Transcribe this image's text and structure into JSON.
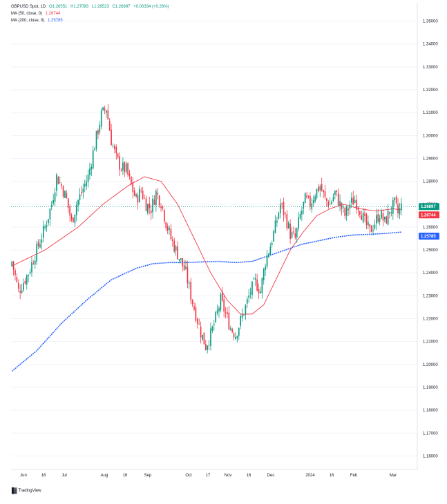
{
  "legend": {
    "symbol_line": {
      "symbol": "GBPUSD Spot, 1D",
      "open": "O1.26551",
      "high": "H1.27093",
      "low": "L1.26523",
      "close": "C1.26897",
      "change": "+0.00334 (+0.26%)"
    },
    "ma50": {
      "label": "MA (50, close, 0)",
      "value": "1.26744",
      "color": "#f23645"
    },
    "ma200": {
      "label": "MA (200, close, 0)",
      "value": "1.25785",
      "color": "#2962ff"
    }
  },
  "footer": {
    "brand": "TradingView"
  },
  "colors": {
    "up": "#089981",
    "down": "#f23645",
    "ma50": "#f23645",
    "ma200": "#2962ff",
    "price_line": "#089981",
    "grid": "#f0f3fa",
    "axis_text": "#131722"
  },
  "chart_data": {
    "type": "candlestick",
    "title": "GBPUSD Spot, 1D",
    "x_ticks": [
      "Jun",
      "16",
      "Jul",
      "Aug",
      "16",
      "Sep",
      "Oct",
      "17",
      "Nov",
      "16",
      "Dec",
      "2024",
      "16",
      "Feb",
      "Mar"
    ],
    "y_ticks": [
      "1.35000",
      "1.34000",
      "1.33000",
      "1.32000",
      "1.31000",
      "1.30000",
      "1.29000",
      "1.28000",
      "1.27000",
      "1.26000",
      "1.25000",
      "1.24000",
      "1.23000",
      "1.22000",
      "1.21000",
      "1.20000",
      "1.19000",
      "1.18000",
      "1.17000",
      "1.16000"
    ],
    "ylim": [
      1.155,
      1.355
    ],
    "price_labels": [
      {
        "name": "last-price",
        "value": "1.26897",
        "level": 1.26897,
        "color": "#089981"
      },
      {
        "name": "ma50-value",
        "value": "1.26744",
        "level": 1.26744,
        "color": "#f23645"
      },
      {
        "name": "ma200-value",
        "value": "1.25785",
        "level": 1.25785,
        "color": "#2962ff"
      }
    ],
    "close_path": [
      [
        0,
        1.245
      ],
      [
        4,
        1.232
      ],
      [
        10,
        1.24
      ],
      [
        16,
        1.252
      ],
      [
        20,
        1.26
      ],
      [
        24,
        1.27
      ],
      [
        27,
        1.282
      ],
      [
        30,
        1.278
      ],
      [
        33,
        1.272
      ],
      [
        36,
        1.262
      ],
      [
        39,
        1.27
      ],
      [
        42,
        1.275
      ],
      [
        46,
        1.282
      ],
      [
        50,
        1.296
      ],
      [
        54,
        1.309
      ],
      [
        57,
        1.312
      ],
      [
        60,
        1.298
      ],
      [
        63,
        1.29
      ],
      [
        66,
        1.286
      ],
      [
        69,
        1.285
      ],
      [
        72,
        1.278
      ],
      [
        75,
        1.272
      ],
      [
        78,
        1.276
      ],
      [
        81,
        1.27
      ],
      [
        84,
        1.268
      ],
      [
        87,
        1.275
      ],
      [
        90,
        1.271
      ],
      [
        93,
        1.262
      ],
      [
        96,
        1.255
      ],
      [
        99,
        1.25
      ],
      [
        102,
        1.245
      ],
      [
        105,
        1.24
      ],
      [
        108,
        1.23
      ],
      [
        111,
        1.222
      ],
      [
        114,
        1.214
      ],
      [
        117,
        1.208
      ],
      [
        120,
        1.213
      ],
      [
        123,
        1.22
      ],
      [
        126,
        1.228
      ],
      [
        129,
        1.222
      ],
      [
        132,
        1.216
      ],
      [
        135,
        1.213
      ],
      [
        138,
        1.219
      ],
      [
        141,
        1.225
      ],
      [
        144,
        1.232
      ],
      [
        147,
        1.236
      ],
      [
        150,
        1.232
      ],
      [
        153,
        1.245
      ],
      [
        156,
        1.252
      ],
      [
        159,
        1.26
      ],
      [
        162,
        1.27
      ],
      [
        165,
        1.265
      ],
      [
        168,
        1.257
      ],
      [
        171,
        1.255
      ],
      [
        174,
        1.265
      ],
      [
        177,
        1.272
      ],
      [
        180,
        1.27
      ],
      [
        183,
        1.275
      ],
      [
        186,
        1.278
      ],
      [
        189,
        1.272
      ],
      [
        192,
        1.27
      ],
      [
        195,
        1.275
      ],
      [
        198,
        1.27
      ],
      [
        201,
        1.265
      ],
      [
        204,
        1.27
      ],
      [
        207,
        1.272
      ],
      [
        210,
        1.268
      ],
      [
        213,
        1.262
      ],
      [
        216,
        1.258
      ],
      [
        219,
        1.262
      ],
      [
        222,
        1.266
      ],
      [
        225,
        1.262
      ],
      [
        228,
        1.267
      ],
      [
        231,
        1.27
      ],
      [
        233,
        1.266
      ],
      [
        235,
        1.269
      ]
    ],
    "ma50_path": [
      [
        0,
        1.243
      ],
      [
        20,
        1.25
      ],
      [
        40,
        1.26
      ],
      [
        55,
        1.27
      ],
      [
        70,
        1.278
      ],
      [
        80,
        1.282
      ],
      [
        90,
        1.28
      ],
      [
        100,
        1.27
      ],
      [
        110,
        1.255
      ],
      [
        120,
        1.24
      ],
      [
        130,
        1.228
      ],
      [
        138,
        1.222
      ],
      [
        145,
        1.222
      ],
      [
        152,
        1.226
      ],
      [
        160,
        1.238
      ],
      [
        168,
        1.25
      ],
      [
        176,
        1.258
      ],
      [
        184,
        1.265
      ],
      [
        192,
        1.268
      ],
      [
        200,
        1.27
      ],
      [
        210,
        1.268
      ],
      [
        220,
        1.267
      ],
      [
        230,
        1.268
      ],
      [
        235,
        1.2675
      ]
    ],
    "ma200_path": [
      [
        0,
        1.197
      ],
      [
        15,
        1.206
      ],
      [
        30,
        1.218
      ],
      [
        45,
        1.228
      ],
      [
        60,
        1.237
      ],
      [
        75,
        1.242
      ],
      [
        85,
        1.244
      ],
      [
        95,
        1.2445
      ],
      [
        105,
        1.2445
      ],
      [
        115,
        1.2448
      ],
      [
        125,
        1.245
      ],
      [
        135,
        1.2445
      ],
      [
        145,
        1.245
      ],
      [
        155,
        1.2475
      ],
      [
        165,
        1.25
      ],
      [
        175,
        1.2525
      ],
      [
        185,
        1.254
      ],
      [
        195,
        1.2555
      ],
      [
        205,
        1.2565
      ],
      [
        215,
        1.2568
      ],
      [
        225,
        1.2572
      ],
      [
        235,
        1.2578
      ]
    ],
    "bar_count": 236
  }
}
